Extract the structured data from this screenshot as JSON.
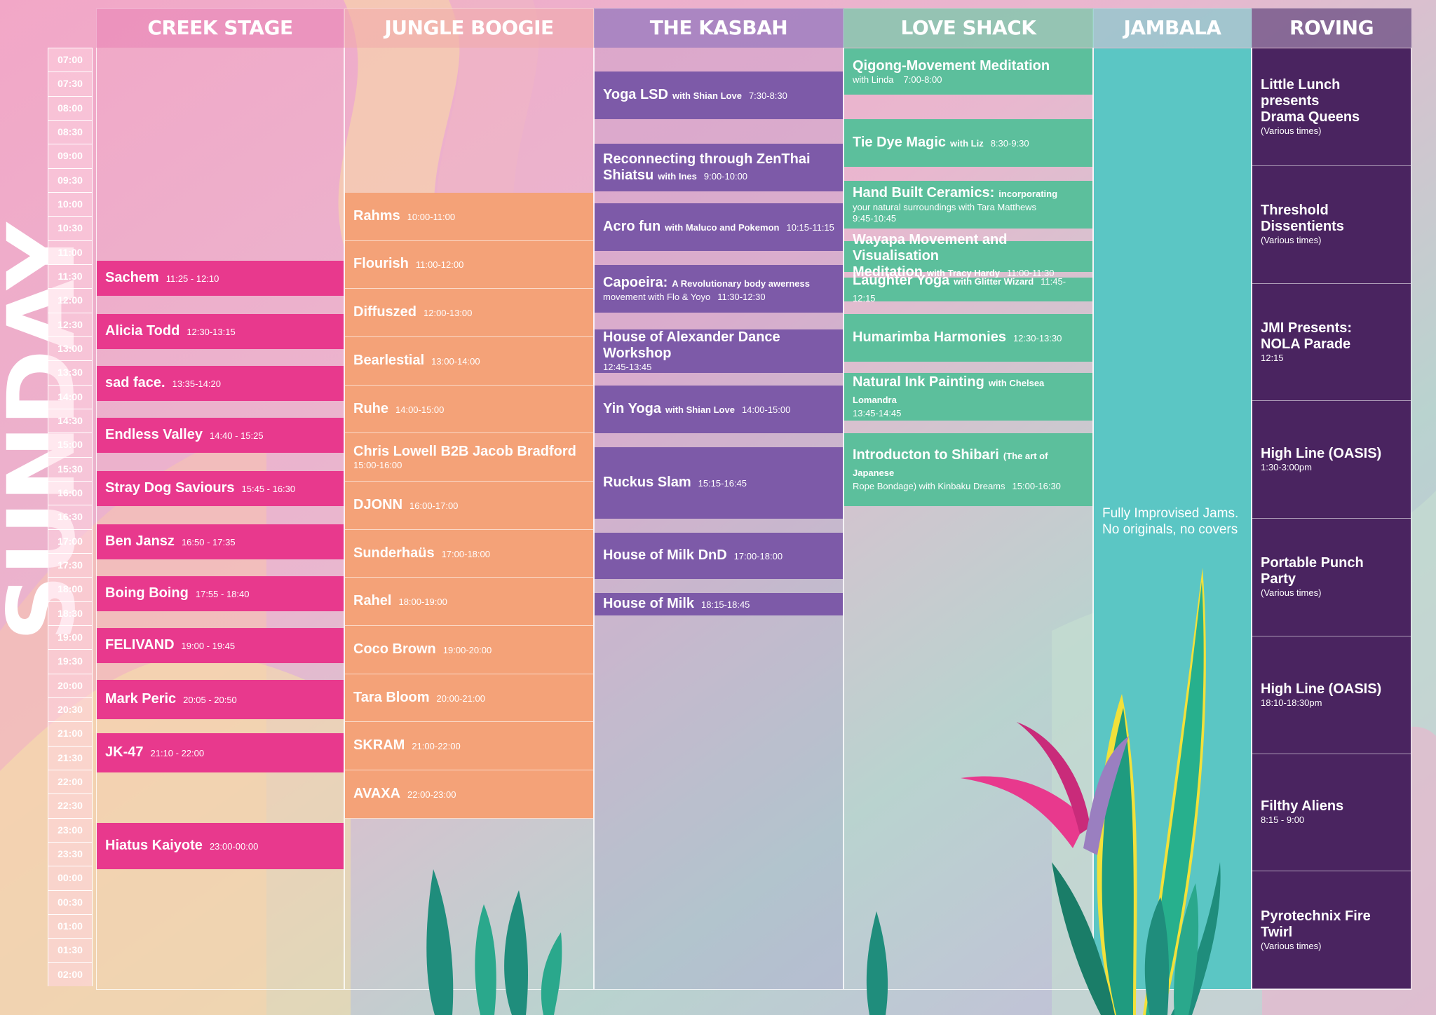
{
  "day": "SUNDAY",
  "times": [
    "07:00",
    "07:30",
    "08:00",
    "08:30",
    "09:00",
    "09:30",
    "10:00",
    "10:30",
    "11:00",
    "11:30",
    "12:00",
    "12:30",
    "13:00",
    "13:30",
    "14:00",
    "14:30",
    "15:00",
    "15:30",
    "16:00",
    "16:30",
    "17:00",
    "17:30",
    "18:00",
    "18:30",
    "19:00",
    "19:30",
    "20:00",
    "20:30",
    "21:00",
    "21:30",
    "22:00",
    "22:30",
    "23:00",
    "23:30",
    "00:00",
    "00:30",
    "01:00",
    "01:30",
    "02:00"
  ],
  "stages": {
    "creek": "CREEK STAGE",
    "jungle": "JUNGLE BOOGIE",
    "kasbah": "THE KASBAH",
    "love": "LOVE SHACK",
    "jambala": "JAMBALA",
    "roving": "ROVING"
  },
  "creek": [
    {
      "name": "Sachem",
      "time": "11:25 - 12:10"
    },
    {
      "name": "Alicia Todd",
      "time": "12:30-13:15"
    },
    {
      "name": "sad face.",
      "time": "13:35-14:20"
    },
    {
      "name": "Endless Valley",
      "time": "14:40 - 15:25"
    },
    {
      "name": "Stray Dog Saviours",
      "time": "15:45 - 16:30"
    },
    {
      "name": "Ben Jansz",
      "time": "16:50 - 17:35"
    },
    {
      "name": "Boing Boing",
      "time": "17:55 - 18:40"
    },
    {
      "name": "FELIVAND",
      "time": "19:00 - 19:45"
    },
    {
      "name": "Mark Peric",
      "time": "20:05 - 20:50"
    },
    {
      "name": "JK-47",
      "time": "21:10 - 22:00"
    },
    {
      "name": "Hiatus Kaiyote",
      "time": "23:00-00:00"
    }
  ],
  "jungle": [
    {
      "name": "Rahms",
      "time": "10:00-11:00"
    },
    {
      "name": "Flourish",
      "time": "11:00-12:00"
    },
    {
      "name": "Diffuszed",
      "time": "12:00-13:00"
    },
    {
      "name": "Bearlestial",
      "time": "13:00-14:00"
    },
    {
      "name": "Ruhe",
      "time": "14:00-15:00"
    },
    {
      "name": "Chris Lowell B2B Jacob Bradford",
      "time": "15:00-16:00"
    },
    {
      "name": "DJONN",
      "time": "16:00-17:00"
    },
    {
      "name": "Sunderhaüs",
      "time": "17:00-18:00"
    },
    {
      "name": "Rahel",
      "time": "18:00-19:00"
    },
    {
      "name": "Coco Brown",
      "time": "19:00-20:00"
    },
    {
      "name": "Tara Bloom",
      "time": "20:00-21:00"
    },
    {
      "name": "SKRAM",
      "time": "21:00-22:00"
    },
    {
      "name": "AVAXA",
      "time": "22:00-23:00"
    }
  ],
  "kasbah": [
    {
      "name": "Yoga LSD",
      "with": "with Shian Love",
      "time": "7:30-8:30"
    },
    {
      "name": "Reconnecting through ZenThai",
      "name2": "Shiatsu",
      "with": "with Ines",
      "time": "9:00-10:00"
    },
    {
      "name": "Acro fun",
      "with": "with Maluco and Pokemon",
      "time": "10:15-11:15"
    },
    {
      "name": "Capoeira:",
      "with": "A Revolutionary body awerness",
      "line2": "movement with Flo & Yoyo",
      "time": "11:30-12:30"
    },
    {
      "name": "House of Alexander Dance Workshop",
      "time": "12:45-13:45"
    },
    {
      "name": "Yin Yoga",
      "with": "with Shian Love",
      "time": "14:00-15:00"
    },
    {
      "name": "Ruckus Slam",
      "time": "15:15-16:45"
    },
    {
      "name": "House of Milk DnD",
      "time": "17:00-18:00"
    },
    {
      "name": "House of Milk",
      "time": "18:15-18:45"
    }
  ],
  "love": [
    {
      "name": "Qigong-Movement Meditation",
      "with": "with Linda",
      "time": "7:00-8:00"
    },
    {
      "name": "Tie Dye Magic",
      "with": "with Liz",
      "time": "8:30-9:30"
    },
    {
      "name": "Hand Built Ceramics:",
      "with": "incorporating",
      "line2": "your natural surroundings with Tara Matthews",
      "time": "9:45-10:45"
    },
    {
      "name": "Wayapa Movement and Visualisation",
      "name2": "Meditation",
      "with": "with Tracy Hardy",
      "time": "11:00-11:30"
    },
    {
      "name": "Laughter Yoga",
      "with": "with Glitter Wizard",
      "time": "11:45-12:15"
    },
    {
      "name": "Humarimba Harmonies",
      "time": "12:30-13:30"
    },
    {
      "name": "Natural Ink Painting",
      "with": "with Chelsea Lomandra",
      "time": "13:45-14:45"
    },
    {
      "name": "Introducton to Shibari",
      "with": "(The art of Japanese",
      "line2": "Rope Bondage) with Kinbaku Dreams",
      "time": "15:00-16:30"
    }
  ],
  "jambala": {
    "line1": "Fully Improvised Jams.",
    "line2": "No originals, no covers"
  },
  "roving": [
    {
      "name": "Little Lunch presents",
      "name2": "Drama Queens",
      "sub": "(Various times)"
    },
    {
      "name": "Threshold Dissentients",
      "sub": "(Various times)"
    },
    {
      "name": "JMI Presents:",
      "name2": "NOLA Parade",
      "sub": "12:15"
    },
    {
      "name": "High Line (OASIS)",
      "sub": "1:30-3:00pm"
    },
    {
      "name": "Portable Punch Party",
      "sub": "(Various times)"
    },
    {
      "name": "High Line (OASIS)",
      "sub": "18:10-18:30pm"
    },
    {
      "name": "Filthy Aliens",
      "sub": "8:15 - 9:00"
    },
    {
      "name": "Pyrotechnix Fire Twirl",
      "sub": "(Various times)"
    }
  ],
  "colors": {
    "creek": "#e8398d",
    "jungle": "#f4a278",
    "kasbah": "#7d5aa8",
    "love": "#5cbf9c",
    "jambala": "#5bc6c4",
    "roving": "#4a2460"
  }
}
